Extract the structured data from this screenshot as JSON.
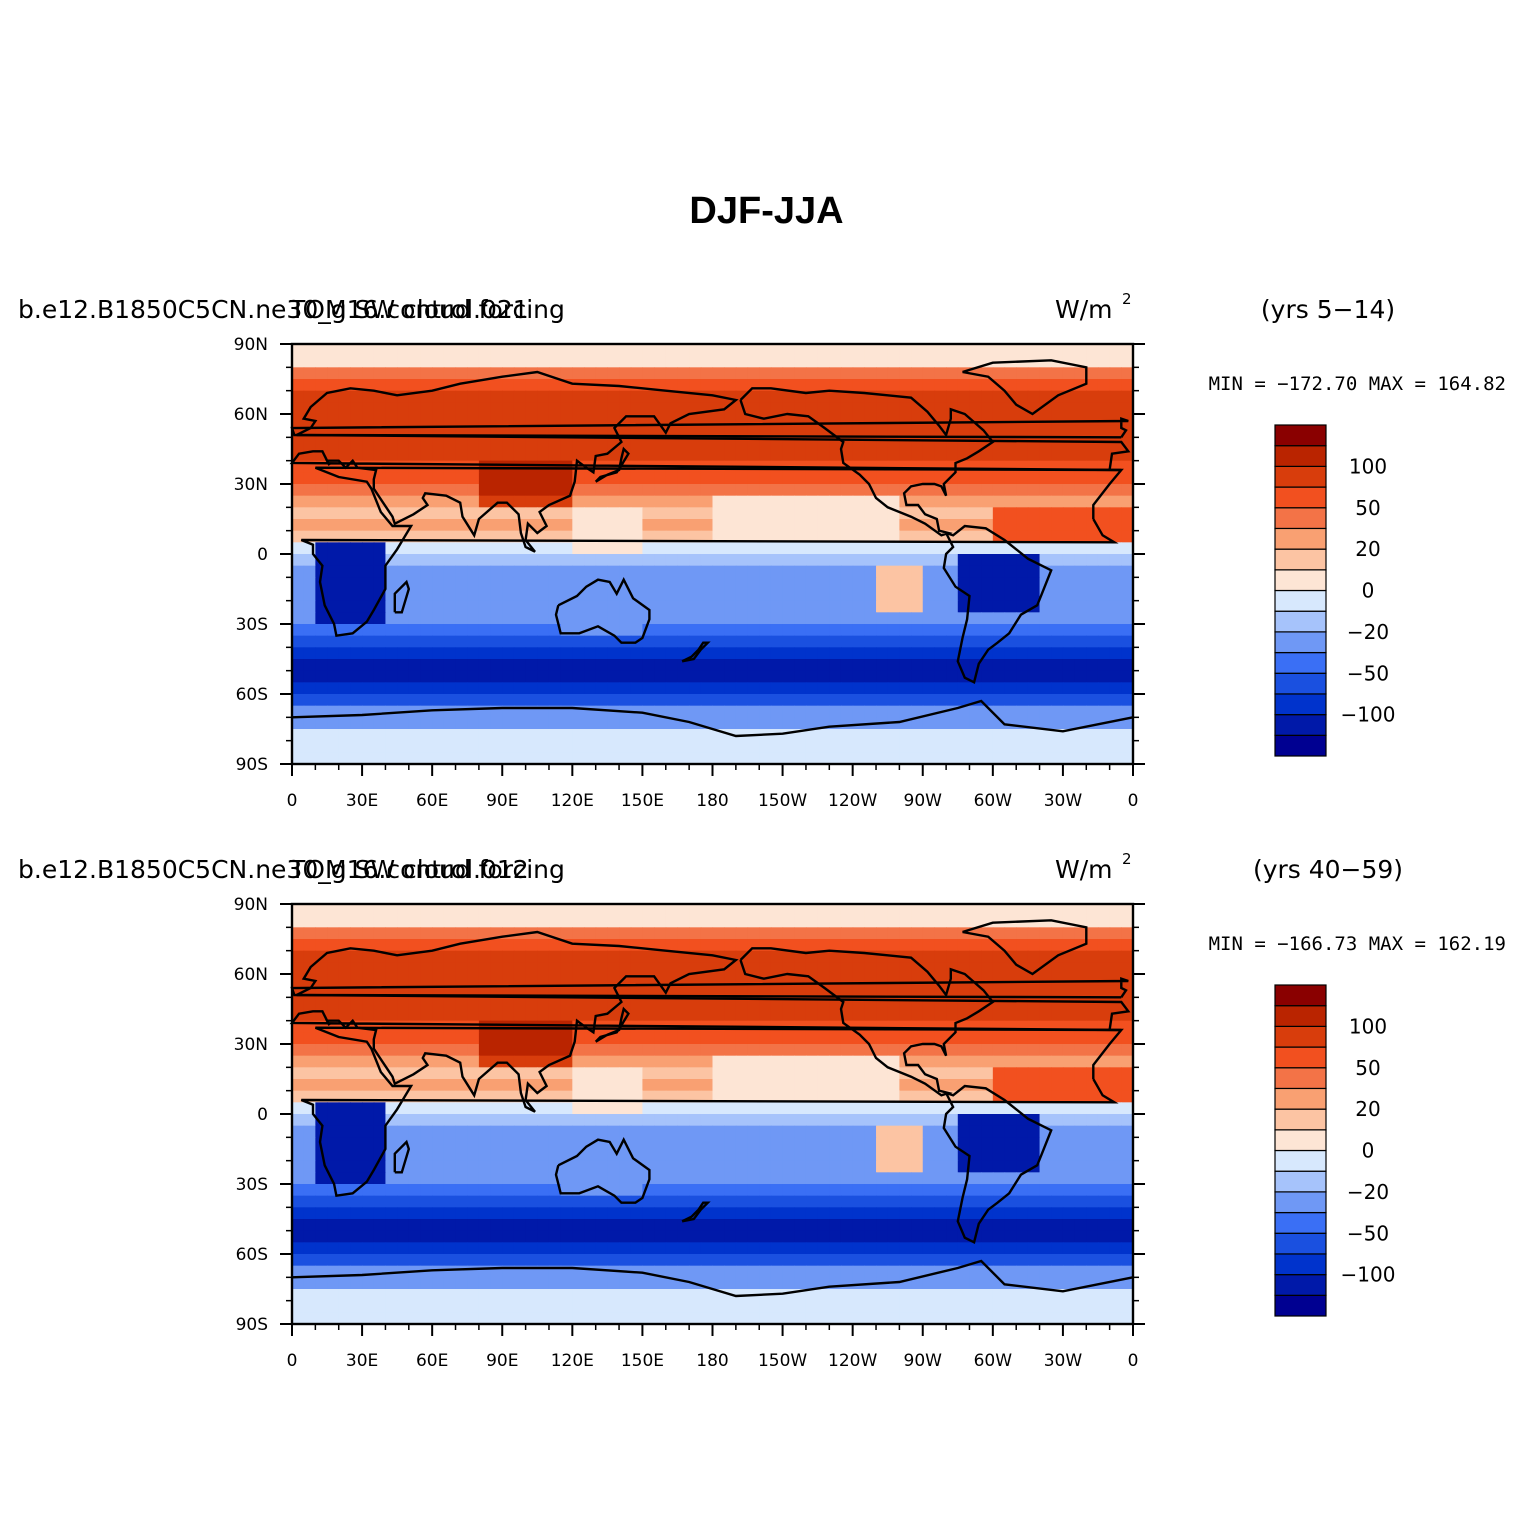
{
  "title": "DJF-JJA",
  "panels": [
    {
      "case_name": "b.e12.B1850C5CN.ne30_g16.control.021",
      "variable": "TOM SW cloud forcing",
      "units": "W/m",
      "units_sup": "2",
      "years": "(yrs 5−14)",
      "minmax": "MIN = −172.70 MAX = 164.82"
    },
    {
      "case_name": "b.e12.B1850C5CN.ne30_g16.control.012",
      "variable": "TOM SW cloud forcing",
      "units": "W/m",
      "units_sup": "2",
      "years": "(yrs 40−59)",
      "minmax": "MIN = −166.73 MAX = 162.19"
    }
  ],
  "colorbar": {
    "colors": [
      "#000091",
      "#0019a9",
      "#0033cc",
      "#1a50e0",
      "#3a6ff5",
      "#6f98f5",
      "#a6c3fb",
      "#d7e8fd",
      "#fde5d5",
      "#fcc4a3",
      "#f9a072",
      "#f37347",
      "#f2501f",
      "#d83d0c",
      "#ba2400",
      "#8a0000"
    ],
    "labels": [
      "−100",
      "−50",
      "−20",
      "0",
      "20",
      "50",
      "100"
    ]
  },
  "axes": {
    "lat_ticks": [
      "90N",
      "60N",
      "30N",
      "0",
      "30S",
      "60S",
      "90S"
    ],
    "lon_ticks": [
      "0",
      "30E",
      "60E",
      "90E",
      "120E",
      "150E",
      "180",
      "150W",
      "120W",
      "90W",
      "60W",
      "30W",
      "0"
    ]
  }
}
